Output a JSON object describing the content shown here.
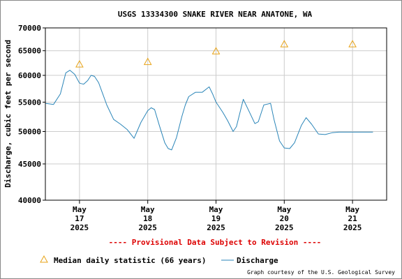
{
  "chart_data": {
    "type": "line",
    "title": "USGS 13334300 SNAKE RIVER NEAR ANATONE, WA",
    "ylabel": "Discharge, cubic feet per second",
    "xlabel": "",
    "ylim": [
      40000,
      70000
    ],
    "y_scale": "log",
    "y_ticks": [
      40000,
      45000,
      50000,
      55000,
      60000,
      65000,
      70000
    ],
    "y_tick_labels": [
      "40000",
      "45000",
      "50000",
      "55000",
      "60000",
      "65000",
      "70000"
    ],
    "xlim": [
      16.5,
      21.5
    ],
    "x_ticks": [
      17,
      18,
      19,
      20,
      21
    ],
    "x_tick_labels": [
      {
        "month": "May",
        "day": "17",
        "year": "2025"
      },
      {
        "month": "May",
        "day": "18",
        "year": "2025"
      },
      {
        "month": "May",
        "day": "19",
        "year": "2025"
      },
      {
        "month": "May",
        "day": "20",
        "year": "2025"
      },
      {
        "month": "May",
        "day": "21",
        "year": "2025"
      }
    ],
    "grid": true,
    "series": [
      {
        "name": "Median daily statistic (66 years)",
        "type": "scatter",
        "marker": "triangle",
        "color": "#e8a317",
        "x": [
          17.0,
          18.0,
          19.0,
          20.0,
          21.0
        ],
        "y": [
          62200,
          62700,
          64900,
          66400,
          66400
        ]
      },
      {
        "name": "Discharge",
        "type": "line",
        "color": "#2a85b8",
        "x": [
          16.5,
          16.62,
          16.72,
          16.8,
          16.86,
          16.93,
          17.0,
          17.06,
          17.12,
          17.17,
          17.22,
          17.28,
          17.34,
          17.4,
          17.5,
          17.6,
          17.7,
          17.8,
          17.9,
          18.0,
          18.05,
          18.1,
          18.17,
          18.25,
          18.3,
          18.35,
          18.42,
          18.5,
          18.55,
          18.6,
          18.7,
          18.8,
          18.9,
          18.95,
          19.0,
          19.1,
          19.17,
          19.25,
          19.3,
          19.4,
          19.5,
          19.57,
          19.62,
          19.7,
          19.8,
          19.85,
          19.93,
          20.0,
          20.08,
          20.15,
          20.25,
          20.32,
          20.4,
          20.5,
          20.6,
          20.7,
          20.8,
          20.87,
          20.95,
          21.03,
          21.1,
          21.15,
          21.2,
          21.25,
          21.3
        ],
        "y": [
          54800,
          54600,
          56500,
          60500,
          61000,
          60200,
          58500,
          58300,
          59000,
          60000,
          59800,
          58600,
          56500,
          54500,
          52000,
          51200,
          50300,
          48900,
          51500,
          53500,
          54000,
          53700,
          51000,
          48200,
          47300,
          47100,
          49000,
          52500,
          54500,
          56000,
          56800,
          56800,
          57800,
          56500,
          55000,
          53200,
          51800,
          50000,
          50800,
          55500,
          53000,
          51300,
          51600,
          54500,
          54800,
          52000,
          48500,
          47400,
          47300,
          48200,
          51000,
          52300,
          51200,
          49600,
          49500,
          49800,
          49900,
          49900,
          49900,
          49900,
          49900,
          49900,
          49900,
          49900,
          49900
        ]
      }
    ],
    "legend": {
      "placement": "bottom-left",
      "median_label": "Median daily statistic (66 years)",
      "discharge_label": "Discharge"
    }
  },
  "notice": "---- Provisional Data Subject to Revision ----",
  "credit": "Graph courtesy of the U.S. Geological Survey",
  "colors": {
    "discharge": "#2a85b8",
    "median": "#e8a317",
    "notice": "#dd0000",
    "grid": "#cccccc",
    "frame": "#000000"
  }
}
